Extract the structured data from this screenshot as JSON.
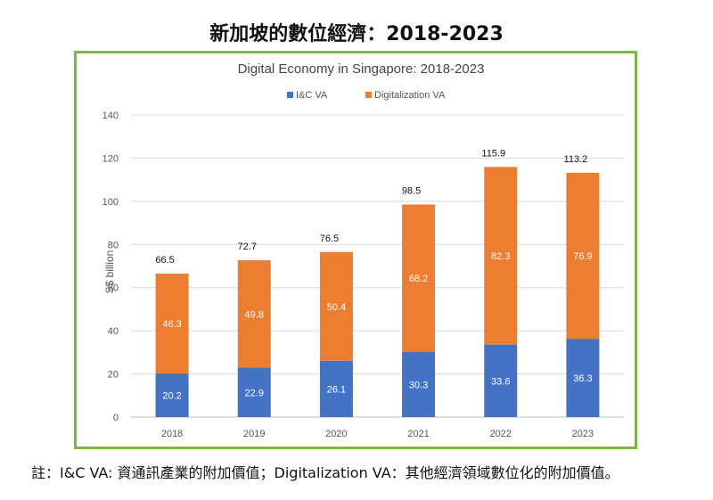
{
  "page_title": "新加坡的數位經濟：2018-2023",
  "footnote": "註：I&C VA:  資通訊產業的附加價值；Digitalization VA：其他經濟領域數位化的附加價值。",
  "chart_data": {
    "type": "bar",
    "stacked": true,
    "title": "Digital Economy in Singapore: 2018-2023",
    "xlabel": "",
    "ylabel": "S$ billion",
    "ylim": [
      0,
      140
    ],
    "yticks": [
      0,
      20,
      40,
      60,
      80,
      100,
      120,
      140
    ],
    "grid": true,
    "legend_position": "top",
    "categories": [
      "2018",
      "2019",
      "2020",
      "2021",
      "2022",
      "2023"
    ],
    "series": [
      {
        "name": "I&C VA",
        "color": "#4472c4",
        "values": [
          20.2,
          22.9,
          26.1,
          30.3,
          33.6,
          36.3
        ]
      },
      {
        "name": "Digitalization VA",
        "color": "#ed7d31",
        "values": [
          46.3,
          49.8,
          50.4,
          68.2,
          82.3,
          76.9
        ]
      }
    ],
    "totals": [
      66.5,
      72.7,
      76.5,
      98.5,
      115.9,
      113.2
    ]
  }
}
